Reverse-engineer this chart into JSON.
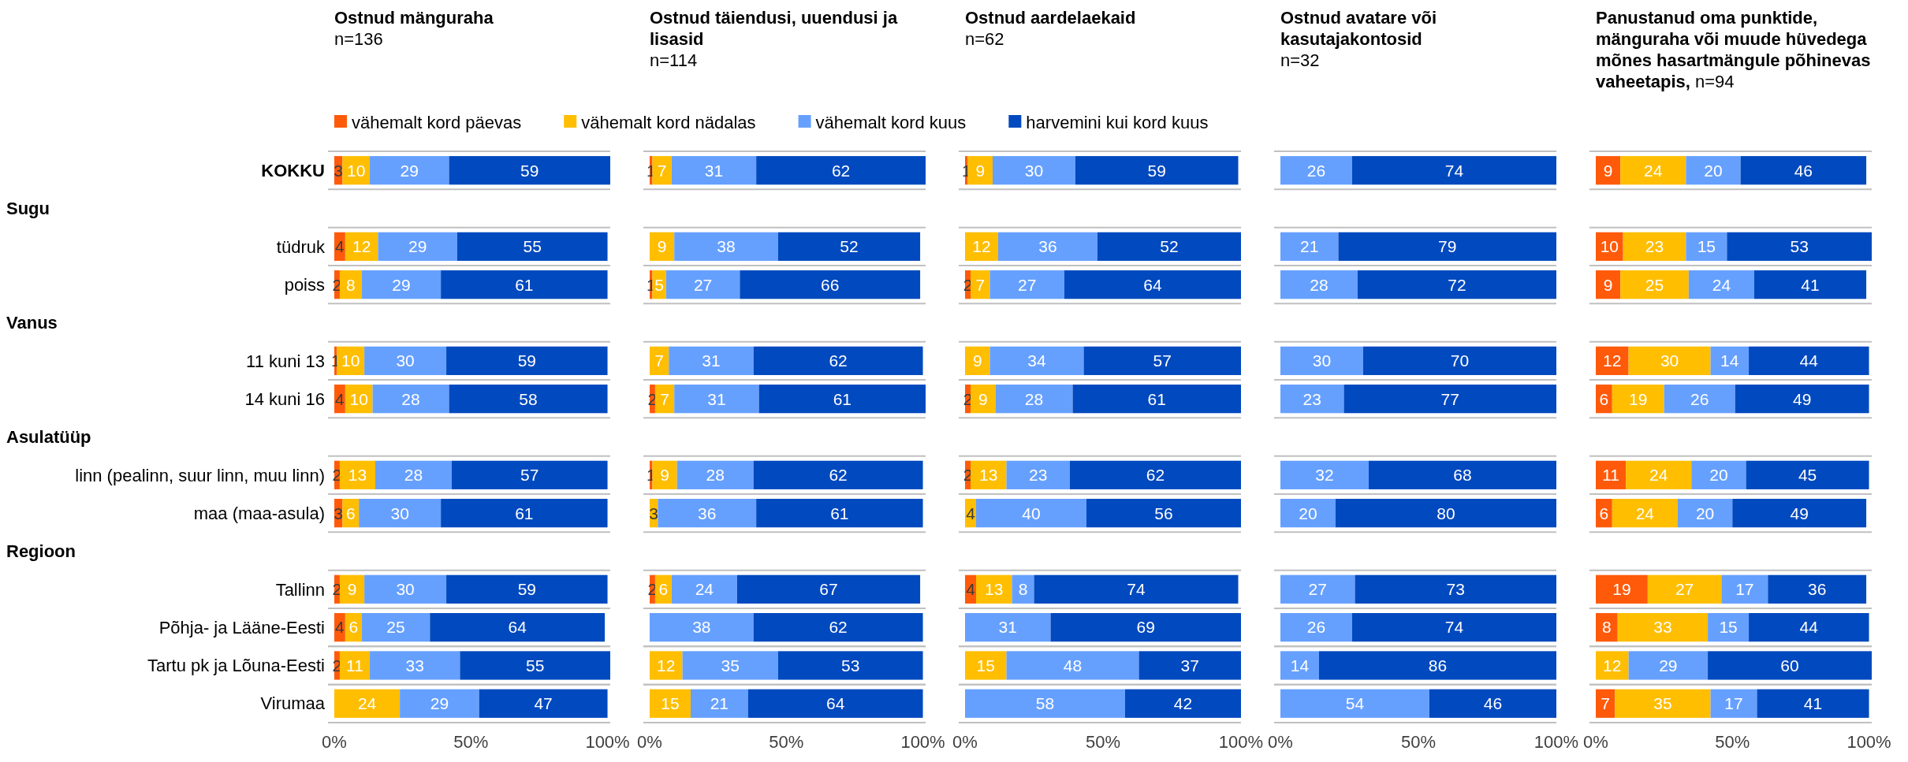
{
  "chart_data": [
    {
      "type": "bar",
      "orientation": "horizontal",
      "stacked": true,
      "title": "Ostnud mänguraha",
      "subtitle": "n=136",
      "annotations": [
        "Sugu",
        "Vanus",
        "Asulatüüp",
        "Regioon"
      ],
      "categories": [
        "KOKKU",
        null,
        "tüdruk",
        "poiss",
        null,
        "11 kuni 13",
        "14 kuni 16",
        null,
        "linn (pealinn, suur linn, muu linn)",
        "maa (maa-asula)",
        null,
        "Tallinn",
        "Põhja- ja Lääne-Eesti",
        "Tartu pk ja Lõuna-Eesti",
        "Virumaa"
      ],
      "xlim": [
        0,
        101
      ],
      "xticks": [
        {
          "value": 0,
          "label": "0%"
        },
        {
          "value": 50,
          "label": "50%"
        },
        {
          "value": 100,
          "label": "100%"
        }
      ],
      "data_labels": true,
      "grid": "y",
      "legend": "top",
      "series": [
        {
          "name": "vähemalt kord päevas",
          "color": "#ff5a0a",
          "values": [
            3,
            null,
            4,
            2,
            null,
            1,
            4,
            null,
            2,
            3,
            null,
            2,
            4,
            2,
            null
          ]
        },
        {
          "name": "vähemalt kord nädalas",
          "color": "#ffbe00",
          "values": [
            10,
            null,
            12,
            8,
            null,
            10,
            10,
            null,
            13,
            6,
            null,
            9,
            6,
            11,
            24
          ]
        },
        {
          "name": "vähemalt kord kuus",
          "color": "#66a0ff",
          "values": [
            29,
            null,
            29,
            29,
            null,
            30,
            28,
            null,
            28,
            30,
            null,
            30,
            25,
            33,
            29
          ]
        },
        {
          "name": "harvemini kui kord kuus",
          "color": "#0049bf",
          "values": [
            59,
            null,
            55,
            61,
            null,
            59,
            58,
            null,
            57,
            61,
            null,
            59,
            64,
            55,
            47
          ]
        }
      ]
    },
    {
      "type": "bar",
      "orientation": "horizontal",
      "stacked": true,
      "title": "Ostnud täiendusi, uuendusi ja lisasid",
      "subtitle": "n=114",
      "tick_labels": "x",
      "xlim": [
        0,
        101
      ],
      "xticks": [
        {
          "value": 0,
          "label": "0%"
        },
        {
          "value": 50,
          "label": "50%"
        },
        {
          "value": 100,
          "label": "100%"
        }
      ],
      "data_labels": true,
      "grid": "y",
      "series": [
        {
          "color": "#ff5a0a",
          "values": [
            1,
            null,
            null,
            1,
            null,
            null,
            2,
            null,
            1,
            null,
            null,
            2,
            null,
            null,
            null
          ]
        },
        {
          "color": "#ffbe00",
          "values": [
            7,
            null,
            9,
            5,
            null,
            7,
            7,
            null,
            9,
            3,
            null,
            6,
            null,
            12,
            15
          ]
        },
        {
          "color": "#66a0ff",
          "values": [
            31,
            null,
            38,
            27,
            null,
            31,
            31,
            null,
            28,
            36,
            null,
            24,
            38,
            35,
            21
          ]
        },
        {
          "color": "#0049bf",
          "values": [
            62,
            null,
            52,
            66,
            null,
            62,
            61,
            null,
            62,
            61,
            null,
            67,
            62,
            53,
            64
          ]
        }
      ]
    },
    {
      "type": "bar",
      "orientation": "horizontal",
      "stacked": true,
      "title": "Ostnud aardelaekaid",
      "subtitle": "n=62",
      "tick_labels": "x",
      "xlim": [
        0,
        100
      ],
      "xticks": [
        {
          "value": 0,
          "label": "0%"
        },
        {
          "value": 50,
          "label": "50%"
        },
        {
          "value": 100,
          "label": "100%"
        }
      ],
      "data_labels": true,
      "grid": "y",
      "series": [
        {
          "color": "#ff5a0a",
          "values": [
            1,
            null,
            null,
            2,
            null,
            null,
            2,
            null,
            2,
            null,
            null,
            4,
            null,
            null,
            null
          ]
        },
        {
          "color": "#ffbe00",
          "values": [
            9,
            null,
            12,
            7,
            null,
            9,
            9,
            null,
            13,
            4,
            null,
            13,
            null,
            15,
            null
          ]
        },
        {
          "color": "#66a0ff",
          "values": [
            30,
            null,
            36,
            27,
            null,
            34,
            28,
            null,
            23,
            40,
            null,
            8,
            31,
            48,
            58
          ]
        },
        {
          "color": "#0049bf",
          "values": [
            59,
            null,
            52,
            64,
            null,
            57,
            61,
            null,
            62,
            56,
            null,
            74,
            69,
            37,
            42
          ]
        }
      ]
    },
    {
      "type": "bar",
      "orientation": "horizontal",
      "stacked": true,
      "title": "Ostnud avatare või kasutajakontosid",
      "subtitle": "n=32",
      "tick_labels": "x",
      "xlim": [
        0,
        100
      ],
      "xticks": [
        {
          "value": 0,
          "label": "0%"
        },
        {
          "value": 50,
          "label": "50%"
        },
        {
          "value": 100,
          "label": "100%"
        }
      ],
      "data_labels": true,
      "grid": "y",
      "series": [
        {
          "color": "#66a0ff",
          "values": [
            26,
            null,
            21,
            28,
            null,
            30,
            23,
            null,
            32,
            20,
            null,
            27,
            26,
            14,
            54
          ]
        },
        {
          "color": "#0049bf",
          "values": [
            74,
            null,
            79,
            72,
            null,
            70,
            77,
            null,
            68,
            80,
            null,
            73,
            74,
            86,
            46
          ]
        }
      ]
    },
    {
      "type": "bar",
      "orientation": "horizontal",
      "stacked": true,
      "title": "Panustanud oma punktide, mänguraha või muude hüvedega mõnes hasartmängule põhinevas vaheetapis,",
      "subtitle": "n=94",
      "tick_labels": "x",
      "xlim": [
        0,
        101
      ],
      "xticks": [
        {
          "value": 0,
          "label": "0%"
        },
        {
          "value": 50,
          "label": "50%"
        },
        {
          "value": 100,
          "label": "100%"
        }
      ],
      "data_labels": true,
      "grid": "y",
      "series": [
        {
          "color": "#ff5a0a",
          "values": [
            9,
            null,
            10,
            9,
            null,
            12,
            6,
            null,
            11,
            6,
            null,
            19,
            8,
            null,
            7
          ]
        },
        {
          "color": "#ffbe00",
          "values": [
            24,
            null,
            23,
            25,
            null,
            30,
            19,
            null,
            24,
            24,
            null,
            27,
            33,
            12,
            35
          ]
        },
        {
          "color": "#66a0ff",
          "values": [
            20,
            null,
            15,
            24,
            null,
            14,
            26,
            null,
            20,
            20,
            null,
            17,
            15,
            29,
            17
          ]
        },
        {
          "color": "#0049bf",
          "values": [
            46,
            null,
            53,
            41,
            null,
            44,
            49,
            null,
            45,
            49,
            null,
            36,
            44,
            60,
            41
          ]
        }
      ]
    }
  ]
}
